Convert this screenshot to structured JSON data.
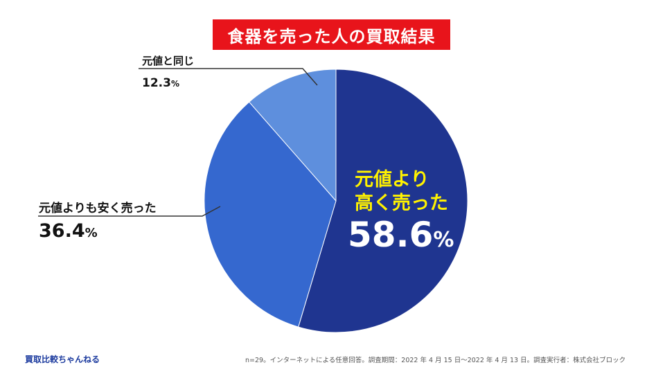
{
  "title": "食器を売った人の買取結果",
  "chart_data": {
    "type": "pie",
    "title": "食器を売った人の買取結果",
    "slices": [
      {
        "label_line1": "元値より",
        "label_line2": "高く売った",
        "value": 58.6,
        "color": "#1f3590"
      },
      {
        "label": "元値よりも安く売った",
        "value": 36.4,
        "color": "#3568cf"
      },
      {
        "label": "元値と同じ",
        "value": 12.3,
        "color": "#5e8fdd"
      }
    ],
    "unit": "%"
  },
  "labels": {
    "same_label": "元値と同じ",
    "same_value": "12.3",
    "cheaper_label": "元値よりも安く売った",
    "cheaper_value": "36.4",
    "higher_line1": "元値より",
    "higher_line2": "高く売った",
    "higher_value": "58.6",
    "percent_sign": "%"
  },
  "footer": {
    "brand": "買取比較ちゃんねる",
    "note": "n=29。インターネットによる任意回答。調査期間：2022 年 4 月 15 日〜2022 年 4 月 13 日。調査実行者：株式会社ブロック"
  }
}
